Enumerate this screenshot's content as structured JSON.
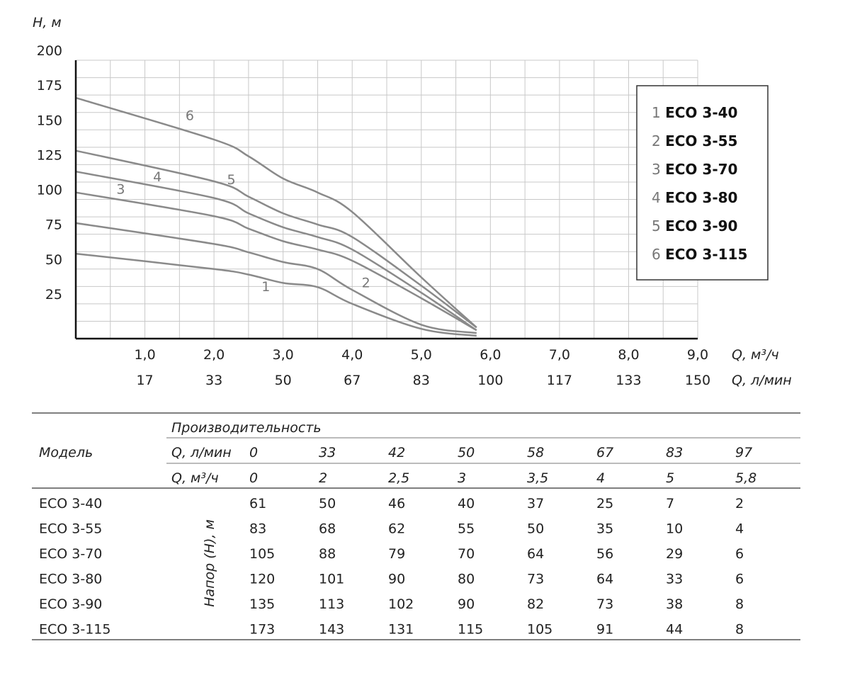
{
  "chart_data": {
    "type": "line",
    "ylabel": "H, м",
    "xlabel": "Q, м³/ч",
    "xlabel2": "Q, л/мин",
    "xlim": [
      0,
      9
    ],
    "ylim": [
      0,
      200
    ],
    "grid": true,
    "legend_position": "top-right",
    "y_ticks": [
      "25",
      "50",
      "75",
      "100",
      "125",
      "150",
      "175",
      "200"
    ],
    "x_ticks": [
      "1,0",
      "2,0",
      "3,0",
      "4,0",
      "5,0",
      "6,0",
      "7,0",
      "8,0",
      "9,0"
    ],
    "x_ticks2": [
      "17",
      "33",
      "50",
      "67",
      "83",
      "100",
      "117",
      "133",
      "150"
    ],
    "series": [
      {
        "name": "ECO 3-40",
        "num": "1",
        "x": [
          0,
          2,
          2.5,
          3,
          3.5,
          4,
          5,
          5.8
        ],
        "y": [
          61,
          50,
          46,
          40,
          37,
          25,
          7,
          2
        ]
      },
      {
        "name": "ECO 3-55",
        "num": "2",
        "x": [
          0,
          2,
          2.5,
          3,
          3.5,
          4,
          5,
          5.8
        ],
        "y": [
          83,
          68,
          62,
          55,
          50,
          35,
          10,
          4
        ]
      },
      {
        "name": "ECO 3-70",
        "num": "3",
        "x": [
          0,
          2,
          2.5,
          3,
          3.5,
          4,
          5,
          5.8
        ],
        "y": [
          105,
          88,
          79,
          70,
          64,
          56,
          29,
          6
        ]
      },
      {
        "name": "ECO 3-80",
        "num": "4",
        "x": [
          0,
          2,
          2.5,
          3,
          3.5,
          4,
          5,
          5.8
        ],
        "y": [
          120,
          101,
          90,
          80,
          73,
          64,
          33,
          6
        ]
      },
      {
        "name": "ECO 3-90",
        "num": "5",
        "x": [
          0,
          2,
          2.5,
          3,
          3.5,
          4,
          5,
          5.8
        ],
        "y": [
          135,
          113,
          102,
          90,
          82,
          73,
          38,
          8
        ]
      },
      {
        "name": "ECO 3-115",
        "num": "6",
        "x": [
          0,
          2,
          2.5,
          3,
          3.5,
          4,
          5,
          5.8
        ],
        "y": [
          173,
          143,
          131,
          115,
          105,
          91,
          44,
          8
        ]
      }
    ],
    "curve_labels": [
      {
        "text": "1",
        "x": 2.75,
        "y": 34
      },
      {
        "text": "2",
        "x": 4.2,
        "y": 37
      },
      {
        "text": "3",
        "x": 0.65,
        "y": 104
      },
      {
        "text": "4",
        "x": 1.18,
        "y": 113
      },
      {
        "text": "5",
        "x": 2.25,
        "y": 111
      },
      {
        "text": "6",
        "x": 1.65,
        "y": 157
      }
    ]
  },
  "table": {
    "model_header": "Модель",
    "performance_header": "Производительность",
    "q_lmin_label": "Q, л/мин",
    "q_m3h_label": "Q, м³/ч",
    "head_label": "Напор (Н), м",
    "q_lmin_values": [
      "0",
      "33",
      "42",
      "50",
      "58",
      "67",
      "83",
      "97"
    ],
    "q_m3h_values": [
      "0",
      "2",
      "2,5",
      "3",
      "3,5",
      "4",
      "5",
      "5,8"
    ],
    "rows": [
      {
        "model": "ECO 3-40",
        "values": [
          "61",
          "50",
          "46",
          "40",
          "37",
          "25",
          "7",
          "2"
        ]
      },
      {
        "model": "ECO 3-55",
        "values": [
          "83",
          "68",
          "62",
          "55",
          "50",
          "35",
          "10",
          "4"
        ]
      },
      {
        "model": "ECO 3-70",
        "values": [
          "105",
          "88",
          "79",
          "70",
          "64",
          "56",
          "29",
          "6"
        ]
      },
      {
        "model": "ECO 3-80",
        "values": [
          "120",
          "101",
          "90",
          "80",
          "73",
          "64",
          "33",
          "6"
        ]
      },
      {
        "model": "ECO 3-90",
        "values": [
          "135",
          "113",
          "102",
          "90",
          "82",
          "73",
          "38",
          "8"
        ]
      },
      {
        "model": "ECO 3-115",
        "values": [
          "173",
          "143",
          "131",
          "115",
          "105",
          "91",
          "44",
          "8"
        ]
      }
    ]
  },
  "colors": {
    "curve": "#8a8a8a",
    "grid": "#c8c8c8",
    "axis": "#111111",
    "table_rule": "#555555"
  }
}
